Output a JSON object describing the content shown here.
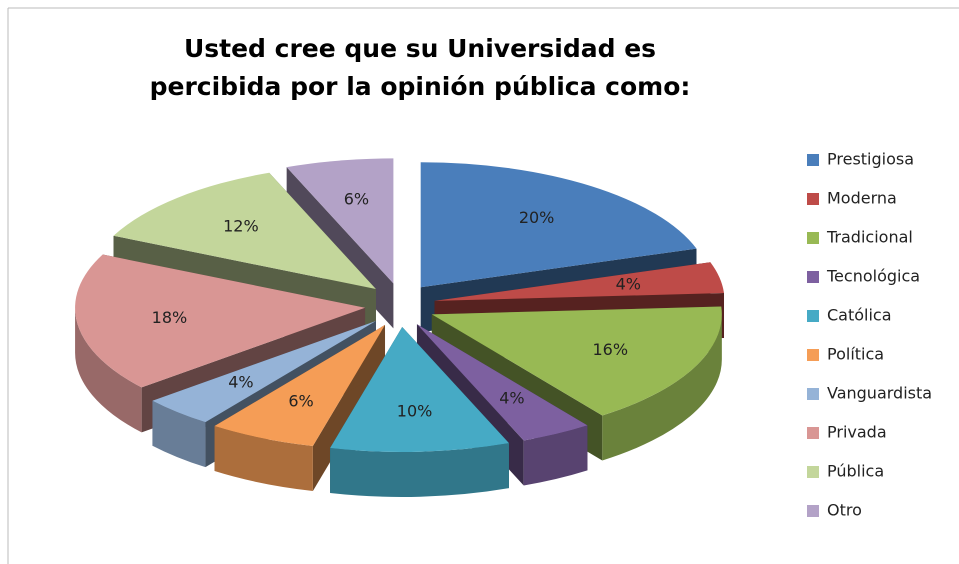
{
  "chart_data": {
    "type": "pie",
    "title": "Usted cree que su Universidad es percibida por la opinión pública como:",
    "categories": [
      "Prestigiosa",
      "Moderna",
      "Tradicional",
      "Tecnológica",
      "Católica",
      "Política",
      "Vanguardista",
      "Privada",
      "Pública",
      "Otro"
    ],
    "values": [
      20,
      4,
      16,
      4,
      10,
      6,
      4,
      18,
      12,
      6
    ],
    "value_labels": [
      "20%",
      "4%",
      "16%",
      "4%",
      "10%",
      "6%",
      "4%",
      "18%",
      "12%",
      "6%"
    ],
    "colors": [
      "#4a7ebb",
      "#be4b48",
      "#98b954",
      "#7d60a0",
      "#46aac5",
      "#f59d56",
      "#95b3d7",
      "#d99694",
      "#c3d69b",
      "#b3a2c7"
    ],
    "legend": "right"
  }
}
